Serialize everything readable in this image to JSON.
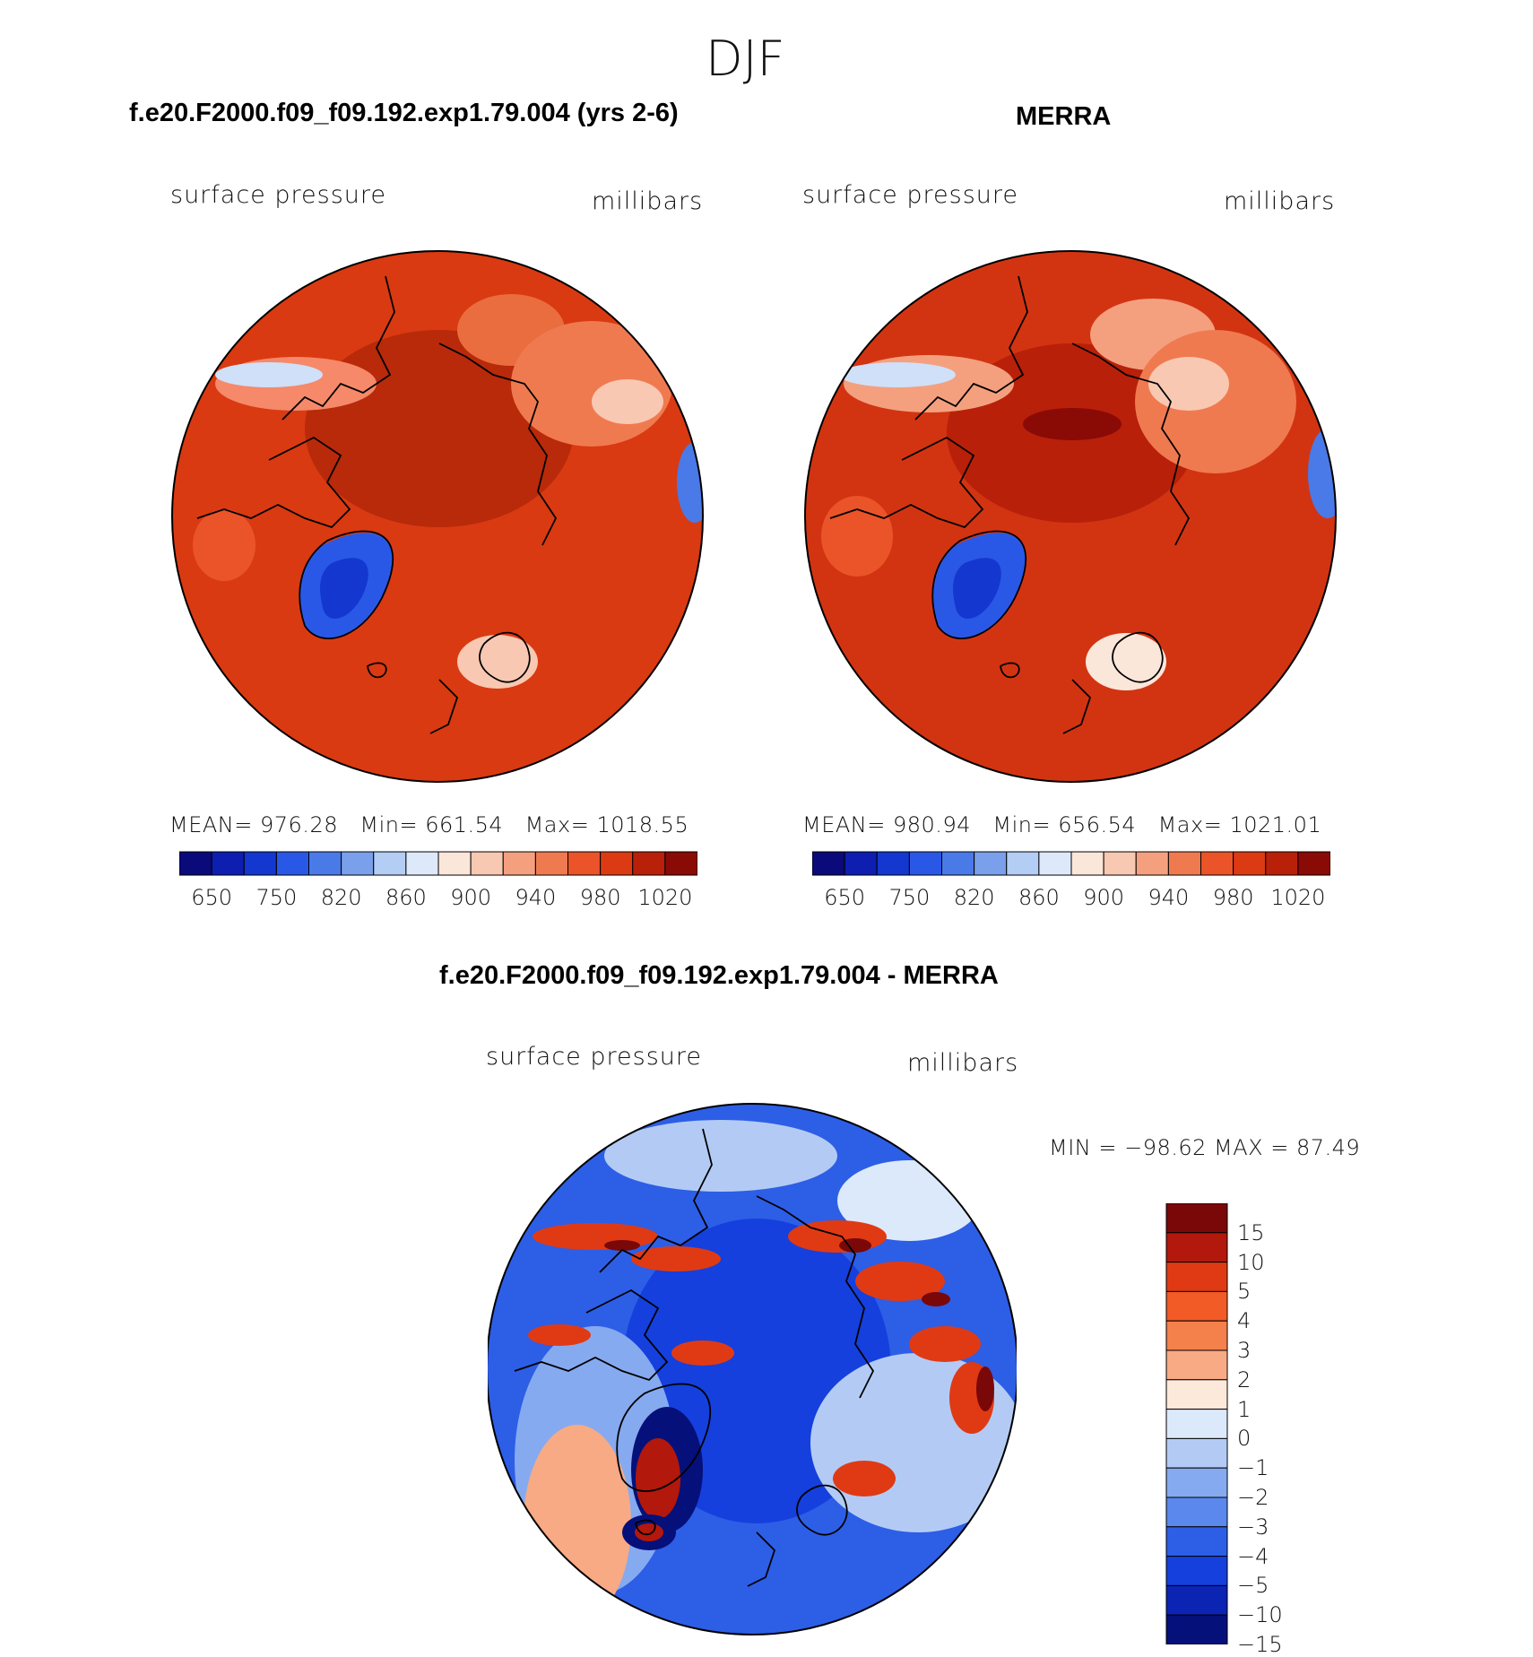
{
  "title": "DJF",
  "panel_left": {
    "heading": "f.e20.F2000.f09_f09.192.exp1.79.004 (yrs 2-6)",
    "variable": "surface pressure",
    "units": "millibars",
    "stats": {
      "mean_label": "MEAN=",
      "mean": "976.28",
      "min_label": "Min=",
      "min": "661.54",
      "max_label": "Max=",
      "max": "1018.55"
    }
  },
  "panel_right": {
    "heading": "MERRA",
    "variable": "surface pressure",
    "units": "millibars",
    "stats": {
      "mean_label": "MEAN=",
      "mean": "980.94",
      "min_label": "Min=",
      "min": "656.54",
      "max_label": "Max=",
      "max": "1021.01"
    }
  },
  "panel_diff": {
    "heading": "f.e20.F2000.f09_f09.192.exp1.79.004 - MERRA",
    "variable": "surface pressure",
    "units": "millibars",
    "minmax": "MIN = −98.62 MAX =   87.49"
  },
  "colorbar_abs": {
    "colors": [
      "#0a0a7a",
      "#0d1eb0",
      "#1437d0",
      "#2a58e6",
      "#4a7ae8",
      "#7aa0ec",
      "#b3cdf4",
      "#dde9fb",
      "#fbe6da",
      "#f8c8b2",
      "#f4a07f",
      "#f07a50",
      "#ea5428",
      "#dc3a12",
      "#b8200a",
      "#8a0a06"
    ],
    "ticks": [
      "650",
      "750",
      "820",
      "860",
      "900",
      "940",
      "980",
      "1020"
    ]
  },
  "colorbar_diff": {
    "colors": [
      "#7a0808",
      "#b2180b",
      "#e03a14",
      "#f25a26",
      "#f4804c",
      "#f8aa84",
      "#fde9da",
      "#dce9fb",
      "#b3cbf4",
      "#86aaf0",
      "#5b88ec",
      "#2d5ee6",
      "#1540dd",
      "#0b24b3",
      "#06107a"
    ],
    "ticks": [
      "15",
      "10",
      "5",
      "4",
      "3",
      "2",
      "1",
      "0",
      "−1",
      "−2",
      "−3",
      "−4",
      "−5",
      "−10",
      "−15"
    ]
  }
}
